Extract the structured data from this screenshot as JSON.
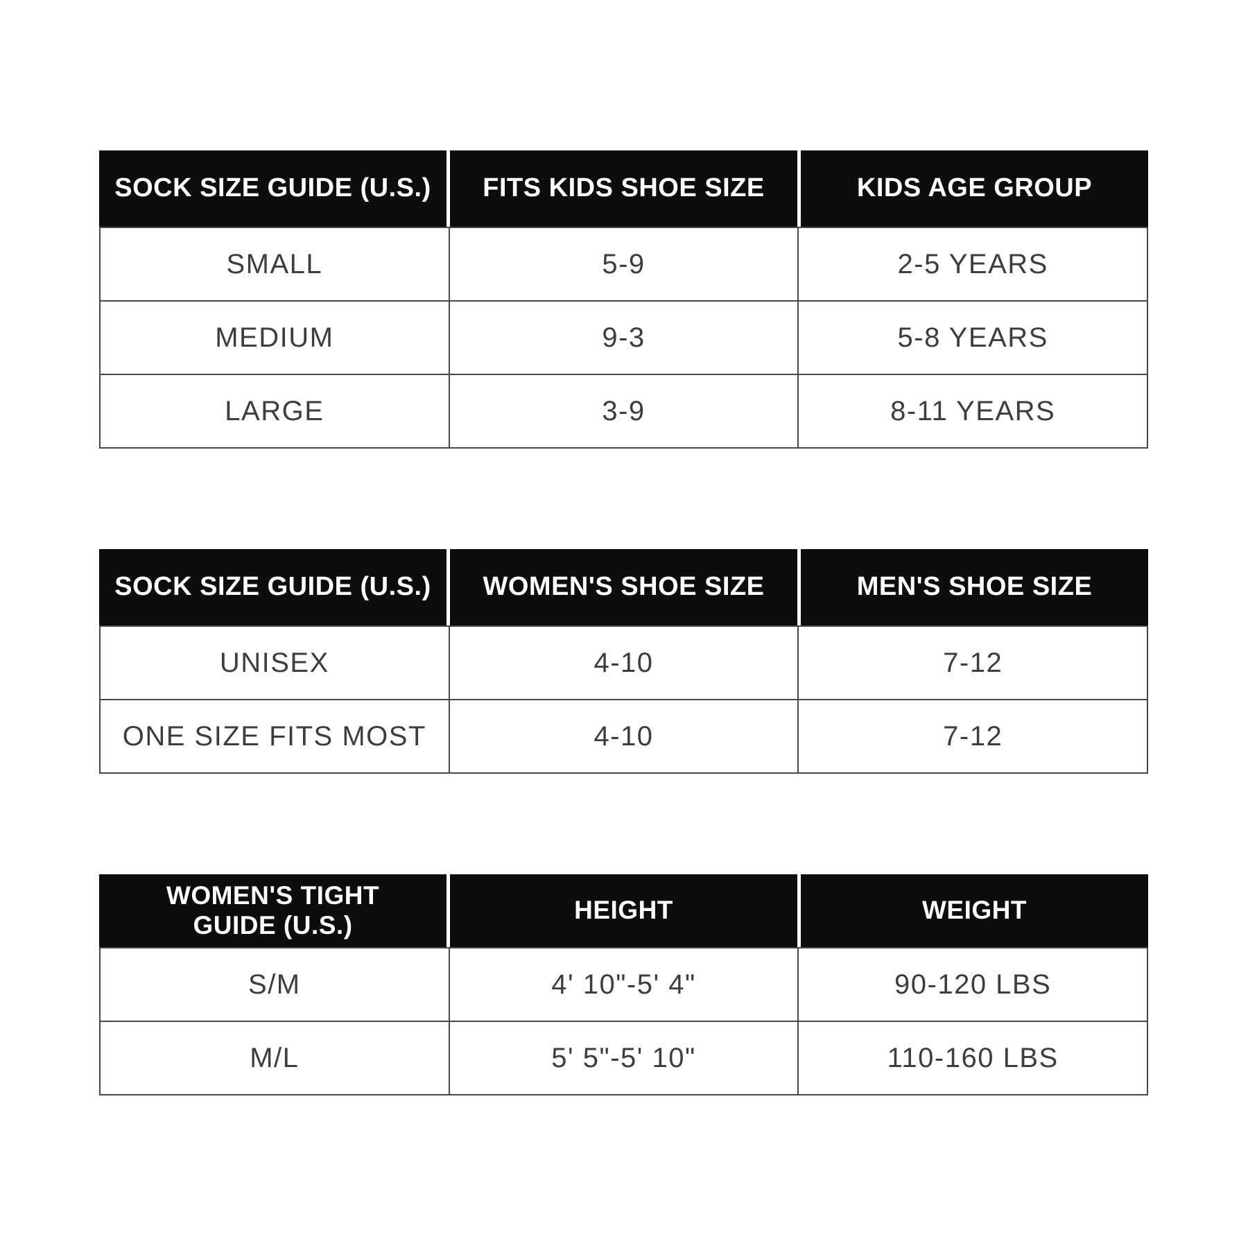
{
  "colors": {
    "page_background": "#ffffff",
    "header_background": "#0d0d0d",
    "header_text": "#ffffff",
    "body_text": "#3d3d3d",
    "border": "#474747"
  },
  "tables": [
    {
      "name": "kids-sock-size-table",
      "headers": [
        "SOCK SIZE GUIDE (U.S.)",
        "FITS KIDS SHOE SIZE",
        "KIDS AGE GROUP"
      ],
      "rows": [
        [
          "SMALL",
          "5-9",
          "2-5 YEARS"
        ],
        [
          "MEDIUM",
          "9-3",
          "5-8 YEARS"
        ],
        [
          "LARGE",
          "3-9",
          "8-11 YEARS"
        ]
      ]
    },
    {
      "name": "adult-sock-size-table",
      "headers": [
        "SOCK SIZE GUIDE (U.S.)",
        "WOMEN'S SHOE SIZE",
        "MEN'S SHOE SIZE"
      ],
      "rows": [
        [
          "UNISEX",
          "4-10",
          "7-12"
        ],
        [
          "ONE SIZE FITS MOST",
          "4-10",
          "7-12"
        ]
      ]
    },
    {
      "name": "womens-tight-guide-table",
      "headers": [
        "WOMEN'S TIGHT GUIDE (U.S.)",
        "HEIGHT",
        "WEIGHT"
      ],
      "header_col1_line1": "WOMEN'S TIGHT",
      "header_col1_line2": "GUIDE (U.S.)",
      "rows": [
        [
          "S/M",
          "4' 10\"-5' 4\"",
          "90-120 LBS"
        ],
        [
          "M/L",
          "5' 5\"-5' 10\"",
          "110-160 LBS"
        ]
      ]
    }
  ]
}
